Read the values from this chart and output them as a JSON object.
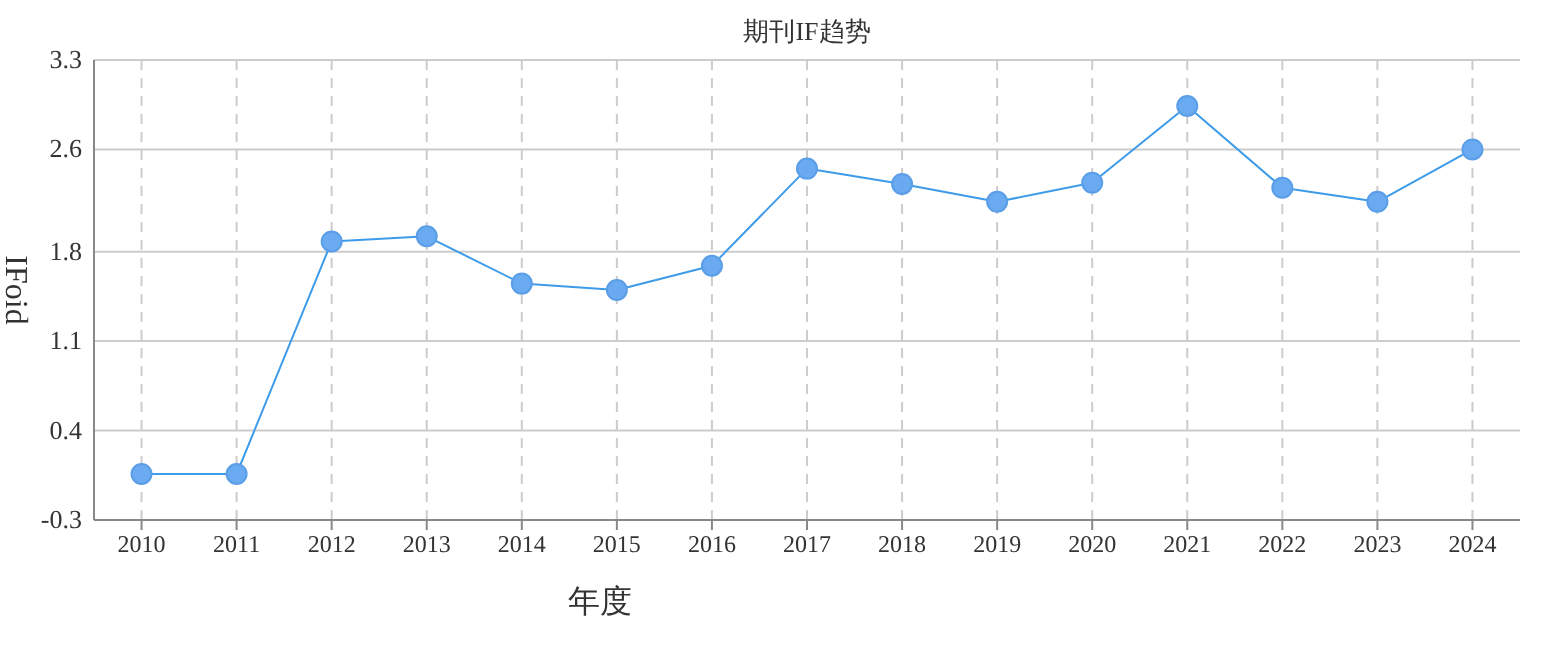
{
  "chart_data": {
    "type": "line",
    "title": "期刊IF趋势",
    "xlabel": "年度",
    "ylabel": "IFoid",
    "categories": [
      "2010",
      "2011",
      "2012",
      "2013",
      "2014",
      "2015",
      "2016",
      "2017",
      "2018",
      "2019",
      "2020",
      "2021",
      "2022",
      "2023",
      "2024"
    ],
    "series": [
      {
        "color": "#3d9be9",
        "values": [
          0.06,
          0.06,
          1.88,
          1.92,
          1.55,
          1.5,
          1.69,
          2.45,
          2.33,
          2.19,
          2.34,
          2.94,
          2.3,
          2.19,
          2.6
        ]
      }
    ],
    "ylim": [
      -0.3,
      3.3
    ],
    "yticks": [
      -0.3,
      0.4,
      1.1,
      1.8,
      2.6,
      3.3
    ],
    "grid": true,
    "marker": "circle",
    "line_style": "solid"
  }
}
